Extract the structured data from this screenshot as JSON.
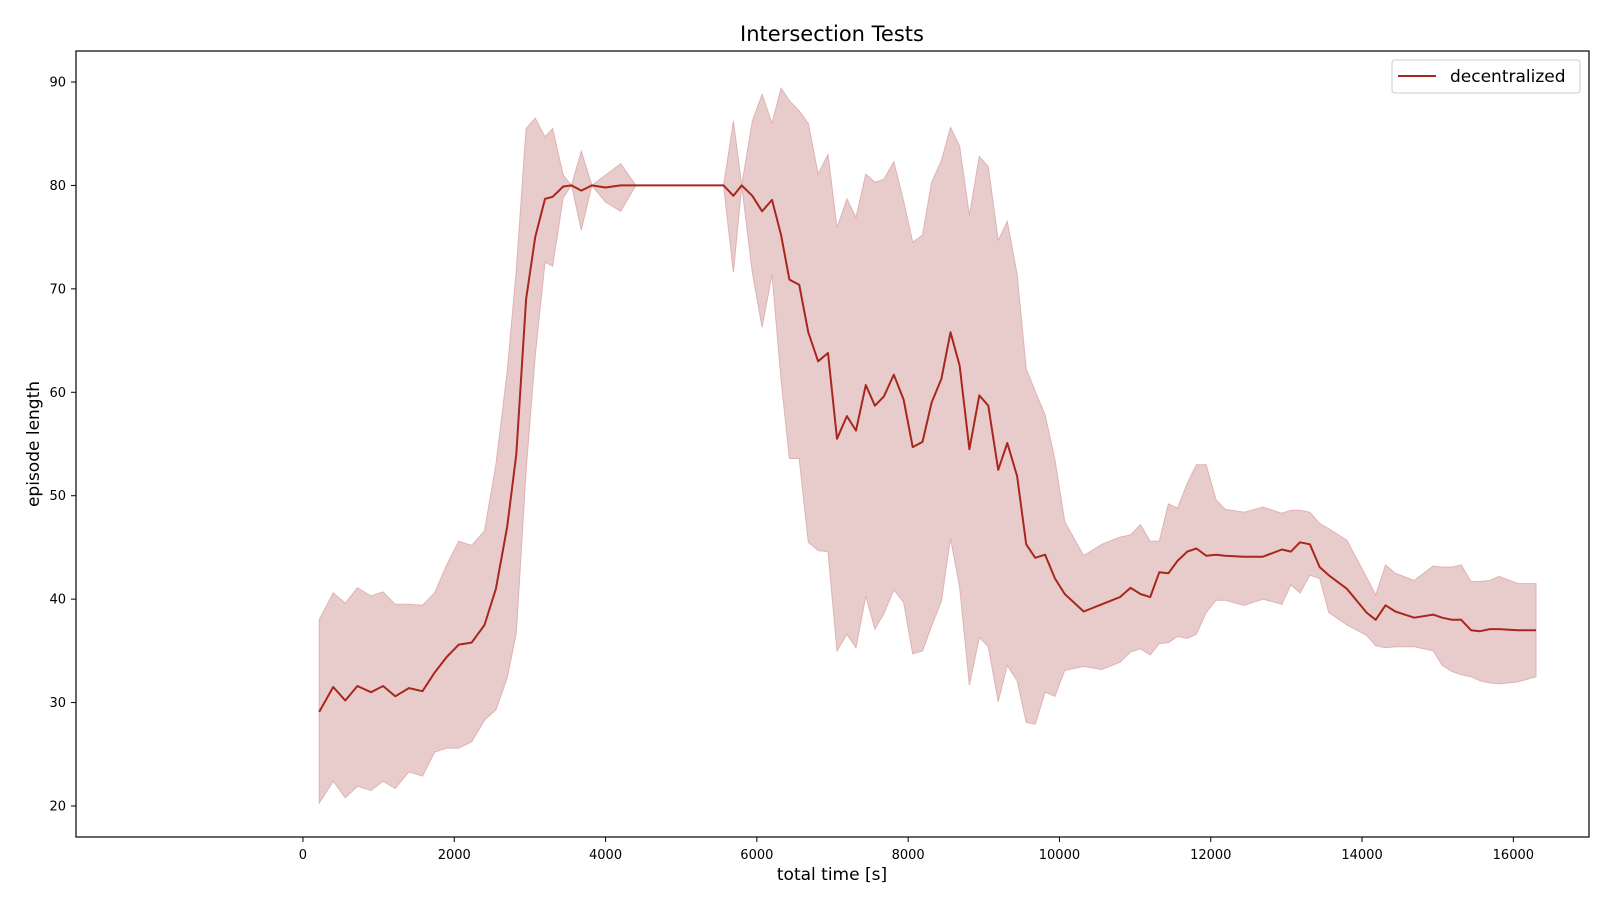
{
  "chart_data": {
    "type": "line",
    "title": "Intersection Tests",
    "xlabel": "total time [s]",
    "ylabel": "episode length",
    "xlim": [
      -3000,
      17000
    ],
    "ylim": [
      17,
      93
    ],
    "xticks": [
      0,
      2000,
      4000,
      6000,
      8000,
      10000,
      12000,
      14000,
      16000
    ],
    "yticks": [
      20,
      30,
      40,
      50,
      60,
      70,
      80,
      90
    ],
    "legend_position": "top-right",
    "grid": false,
    "colors": {
      "line": "#a8271d",
      "band": "#e8cccc",
      "band_edge": "#dfb2b2"
    },
    "series": [
      {
        "name": "decentralized",
        "x": [
          215,
          400,
          560,
          720,
          900,
          1060,
          1220,
          1400,
          1580,
          1740,
          1900,
          2060,
          2230,
          2400,
          2550,
          2700,
          2820,
          2950,
          3070,
          3200,
          3300,
          3440,
          3550,
          3680,
          3820,
          4000,
          4200,
          4400,
          4600,
          4800,
          5000,
          5200,
          5400,
          5560,
          5690,
          5800,
          5940,
          6070,
          6200,
          6320,
          6430,
          6560,
          6680,
          6810,
          6940,
          7060,
          7190,
          7310,
          7440,
          7560,
          7680,
          7810,
          7940,
          8060,
          8190,
          8310,
          8440,
          8560,
          8680,
          8810,
          8940,
          9060,
          9190,
          9310,
          9440,
          9560,
          9680,
          9810,
          9940,
          10070,
          10320,
          10560,
          10800,
          10940,
          11070,
          11200,
          11320,
          11440,
          11560,
          11690,
          11810,
          11940,
          12070,
          12190,
          12440,
          12690,
          12940,
          13060,
          13180,
          13310,
          13440,
          13560,
          13800,
          14060,
          14180,
          14310,
          14440,
          14690,
          14940,
          15060,
          15190,
          15310,
          15440,
          15560,
          15690,
          15810,
          16060,
          16300
        ],
        "y": [
          29.1,
          31.5,
          30.2,
          31.6,
          31.0,
          31.6,
          30.6,
          31.4,
          31.1,
          32.9,
          34.4,
          35.6,
          35.8,
          37.5,
          41.0,
          47.0,
          54.0,
          69.0,
          75.0,
          78.7,
          78.9,
          79.9,
          80.0,
          79.5,
          80.0,
          79.8,
          80.0,
          80.0,
          80.0,
          80.0,
          80.0,
          80.0,
          80.0,
          80.0,
          79.0,
          80.0,
          79.0,
          77.5,
          78.6,
          75.2,
          70.9,
          70.4,
          65.8,
          63.0,
          63.8,
          55.5,
          57.7,
          56.3,
          60.7,
          58.7,
          59.6,
          61.7,
          59.3,
          54.7,
          55.2,
          59.0,
          61.3,
          65.8,
          62.6,
          54.5,
          59.7,
          58.7,
          52.5,
          55.1,
          51.9,
          45.3,
          44.0,
          44.3,
          42.0,
          40.5,
          38.8,
          39.5,
          40.2,
          41.1,
          40.5,
          40.2,
          42.6,
          42.5,
          43.7,
          44.6,
          44.9,
          44.2,
          44.3,
          44.2,
          44.1,
          44.1,
          44.8,
          44.6,
          45.5,
          45.3,
          43.1,
          42.3,
          41.0,
          38.7,
          38.0,
          39.4,
          38.8,
          38.2,
          38.5,
          38.2,
          38.0,
          38.0,
          37.0,
          36.9,
          37.1,
          37.1,
          37.0,
          37.0
        ],
        "upper": [
          38.0,
          40.6,
          39.6,
          41.1,
          40.3,
          40.7,
          39.5,
          39.5,
          39.4,
          40.6,
          43.3,
          45.6,
          45.2,
          46.6,
          53.0,
          62.0,
          71.8,
          85.5,
          86.5,
          84.7,
          85.5,
          81.0,
          80.0,
          83.3,
          80.0,
          81.0,
          82.1,
          80.0,
          80.0,
          80.0,
          80.0,
          80.0,
          80.0,
          80.0,
          86.2,
          80.0,
          86.2,
          88.8,
          86.0,
          89.4,
          88.2,
          87.2,
          86.0,
          81.1,
          83.0,
          75.9,
          78.7,
          76.9,
          81.1,
          80.3,
          80.6,
          82.3,
          78.5,
          74.5,
          75.2,
          80.3,
          82.4,
          85.6,
          83.8,
          77.1,
          82.8,
          81.8,
          74.7,
          76.5,
          71.4,
          62.3,
          60.1,
          57.8,
          53.5,
          47.5,
          44.2,
          45.3,
          46.0,
          46.2,
          47.2,
          45.6,
          45.6,
          49.2,
          48.8,
          51.2,
          53.0,
          53.0,
          49.6,
          48.7,
          48.4,
          48.9,
          48.3,
          48.6,
          48.6,
          48.4,
          47.3,
          46.8,
          45.7,
          42.1,
          40.4,
          43.3,
          42.5,
          41.8,
          43.2,
          43.1,
          43.1,
          43.3,
          41.7,
          41.7,
          41.8,
          42.2,
          41.5,
          41.5
        ],
        "lower": [
          20.3,
          22.4,
          20.8,
          21.9,
          21.5,
          22.4,
          21.7,
          23.3,
          22.9,
          25.2,
          25.6,
          25.6,
          26.2,
          28.3,
          29.3,
          32.4,
          36.7,
          52.5,
          63.5,
          72.6,
          72.2,
          78.8,
          80.0,
          75.7,
          80.0,
          78.4,
          77.5,
          80.0,
          80.0,
          80.0,
          80.0,
          80.0,
          80.0,
          80.0,
          71.6,
          80.0,
          71.6,
          66.3,
          71.4,
          61.2,
          53.6,
          53.6,
          45.5,
          44.7,
          44.6,
          35.0,
          36.6,
          35.3,
          40.3,
          37.1,
          38.6,
          40.9,
          39.7,
          34.7,
          35.0,
          37.4,
          39.8,
          45.9,
          41.2,
          31.7,
          36.3,
          35.4,
          30.1,
          33.6,
          32.1,
          28.1,
          27.9,
          31.0,
          30.6,
          33.1,
          33.5,
          33.2,
          33.9,
          34.9,
          35.2,
          34.6,
          35.7,
          35.8,
          36.4,
          36.2,
          36.6,
          38.7,
          39.9,
          39.9,
          39.4,
          40.0,
          39.5,
          41.4,
          40.6,
          42.3,
          42.0,
          38.7,
          37.5,
          36.5,
          35.5,
          35.3,
          35.4,
          35.4,
          35.0,
          33.6,
          33.0,
          32.7,
          32.5,
          32.1,
          31.9,
          31.8,
          32.0,
          32.5
        ]
      }
    ]
  }
}
